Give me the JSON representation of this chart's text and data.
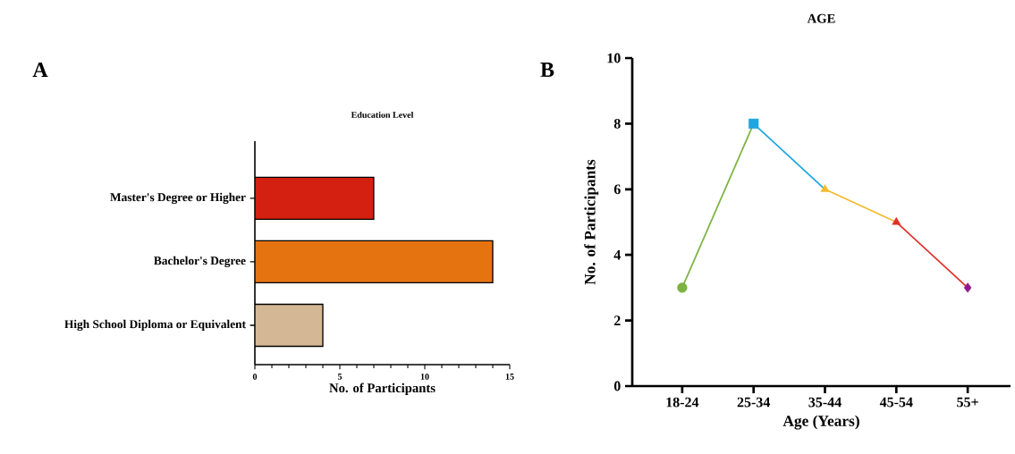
{
  "chart_data": [
    {
      "type": "bar",
      "orientation": "horizontal",
      "title": "Education Level",
      "xlabel": "No. of Participants",
      "categories": [
        "Master's Degree or Higher",
        "Bachelor's Degree",
        "High School Diploma or Equivalent"
      ],
      "values": [
        7,
        14,
        4
      ],
      "colors": [
        "#d42010",
        "#e57310",
        "#d4b896"
      ],
      "xlim": [
        0,
        15
      ],
      "xticks": [
        0,
        5,
        10,
        15
      ],
      "annotations": [
        "A"
      ]
    },
    {
      "type": "line",
      "title": "AGE",
      "xlabel": "Age (Years)",
      "ylabel": "No. of Participants",
      "categories": [
        "18-24",
        "25-34",
        "35-44",
        "45-54",
        "55+"
      ],
      "series": [
        {
          "color": "#7cb342",
          "marker": "circle",
          "values": [
            3,
            8,
            null,
            null,
            null
          ]
        },
        {
          "color": "#1ea7e0",
          "marker": "square",
          "values": [
            null,
            8,
            6,
            null,
            null
          ]
        },
        {
          "color": "#f2bb2e",
          "marker": "triangle",
          "values": [
            null,
            null,
            6,
            5,
            null
          ]
        },
        {
          "color": "#e0302a",
          "marker": "triangle",
          "values": [
            null,
            null,
            null,
            5,
            3
          ]
        },
        {
          "color": "#8e1a8e",
          "marker": "diamond",
          "values": [
            null,
            null,
            null,
            null,
            3
          ]
        }
      ],
      "ylim": [
        0,
        10
      ],
      "yticks": [
        0,
        2,
        4,
        6,
        8,
        10
      ],
      "line_style": "solid",
      "annotations": [
        "B"
      ]
    }
  ]
}
